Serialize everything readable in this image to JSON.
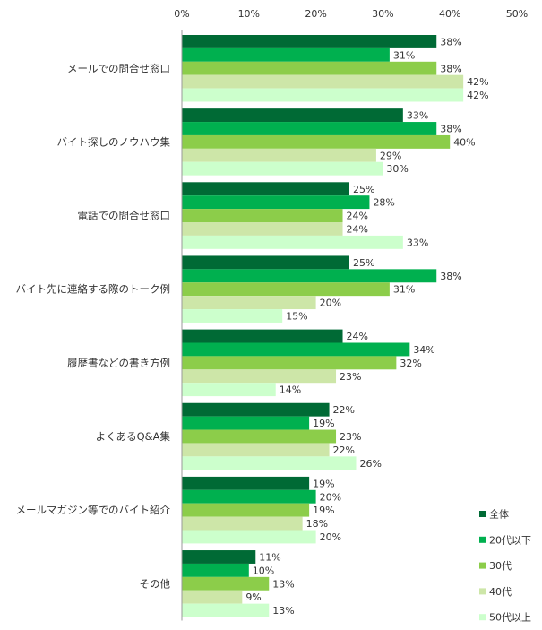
{
  "chart_data": {
    "type": "bar",
    "orientation": "horizontal",
    "x_ticks": [
      "0%",
      "10%",
      "20%",
      "30%",
      "40%",
      "50%"
    ],
    "xlim": [
      0,
      50
    ],
    "value_suffix": "%",
    "categories": [
      "メールでの問合せ窓口",
      "バイト探しのノウハウ集",
      "電話での問合せ窓口",
      "バイト先に連絡する際のトーク例",
      "履歴書などの書き方例",
      "よくあるQ&A集",
      "メールマガジン等でのバイト紹介",
      "その他"
    ],
    "series": [
      {
        "name": "全体",
        "color": "#006a35",
        "values": [
          38,
          33,
          25,
          25,
          24,
          22,
          19,
          11
        ]
      },
      {
        "name": "20代以下",
        "color": "#00b04f",
        "values": [
          31,
          38,
          28,
          38,
          34,
          19,
          20,
          10
        ]
      },
      {
        "name": "30代",
        "color": "#8ccd4a",
        "values": [
          38,
          40,
          24,
          31,
          32,
          23,
          19,
          13
        ]
      },
      {
        "name": "40代",
        "color": "#cde6a8",
        "values": [
          42,
          29,
          24,
          20,
          23,
          22,
          18,
          9
        ]
      },
      {
        "name": "50代以上",
        "color": "#ccffcc",
        "values": [
          42,
          30,
          33,
          15,
          14,
          26,
          20,
          13
        ]
      }
    ],
    "legend_position": "bottom-right",
    "grid": false
  }
}
